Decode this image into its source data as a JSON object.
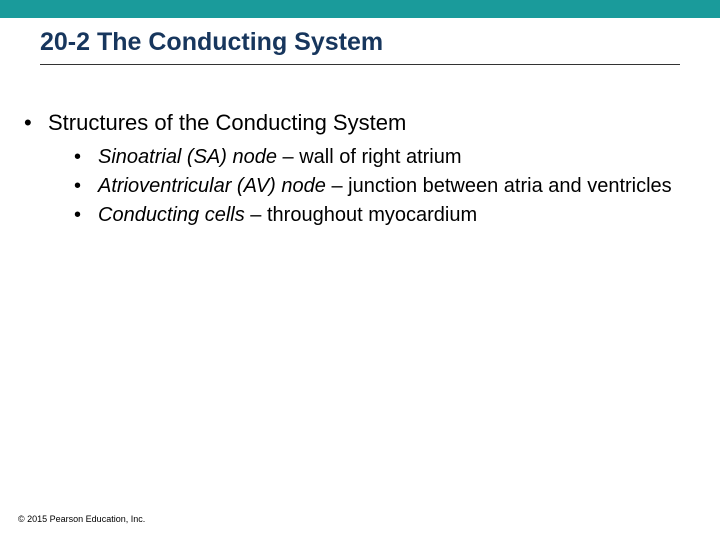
{
  "colors": {
    "topbar": "#1a9b9b",
    "title": "#17365d",
    "underline": "#333333",
    "body_text": "#000000",
    "background": "#ffffff"
  },
  "typography": {
    "title_fontsize": 25,
    "title_weight": "bold",
    "l1_fontsize": 22,
    "l2_fontsize": 20,
    "copyright_fontsize": 9,
    "font_family": "Arial"
  },
  "title": "20-2 The Conducting System",
  "l1_bullet": "•",
  "l2_bullet": "•",
  "l1_text": "Structures of the Conducting System",
  "items": [
    {
      "term": "Sinoatrial (SA) node",
      "sep": " – ",
      "desc": "wall of right atrium"
    },
    {
      "term": "Atrioventricular (AV) node",
      "sep": " – ",
      "desc": "junction between atria and ventricles"
    },
    {
      "term": "Conducting cells",
      "sep": " – ",
      "desc": "throughout myocardium"
    }
  ],
  "copyright": "© 2015 Pearson Education, Inc."
}
